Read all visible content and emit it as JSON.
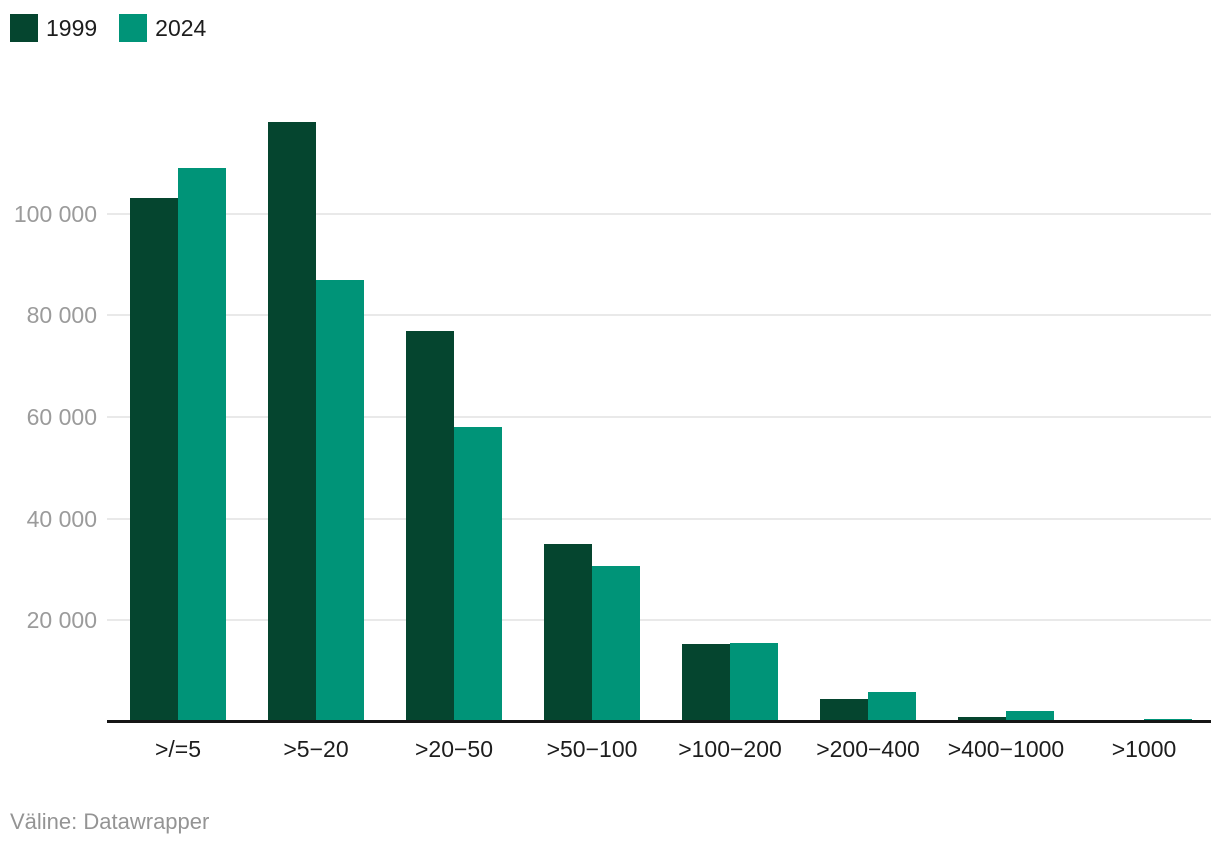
{
  "colors": {
    "background": "#ffffff",
    "grid": "#e9e9e9",
    "axis_line": "#161616",
    "y_tick_label": "#9b9b9b",
    "x_tick_label": "#1d1d1d",
    "legend_label": "#1d1d1d",
    "footer_text": "#949494",
    "series_1999": "#05452f",
    "series_2024": "#009478"
  },
  "chart_data": {
    "type": "bar",
    "categories": [
      ">/=5",
      ">5−20",
      ">20−50",
      ">50−100",
      ">100−200",
      ">200−400",
      ">400−1000",
      ">1000"
    ],
    "series": [
      {
        "name": "1999",
        "color": "#05452f",
        "values": [
          103000,
          118000,
          77000,
          35000,
          15300,
          4600,
          1000,
          100
        ]
      },
      {
        "name": "2024",
        "color": "#009478",
        "values": [
          109000,
          87000,
          58000,
          30700,
          15500,
          5900,
          2100,
          600
        ]
      }
    ],
    "y_axis": {
      "max": 120000,
      "ticks": [
        {
          "value": 20000,
          "label": "20 000"
        },
        {
          "value": 40000,
          "label": "40 000"
        },
        {
          "value": 60000,
          "label": "60 000"
        },
        {
          "value": 80000,
          "label": "80 000"
        },
        {
          "value": 100000,
          "label": "100 000"
        }
      ]
    },
    "grid": true,
    "legend_position": "top-left"
  },
  "footer": {
    "text": "Väline: Datawrapper"
  }
}
